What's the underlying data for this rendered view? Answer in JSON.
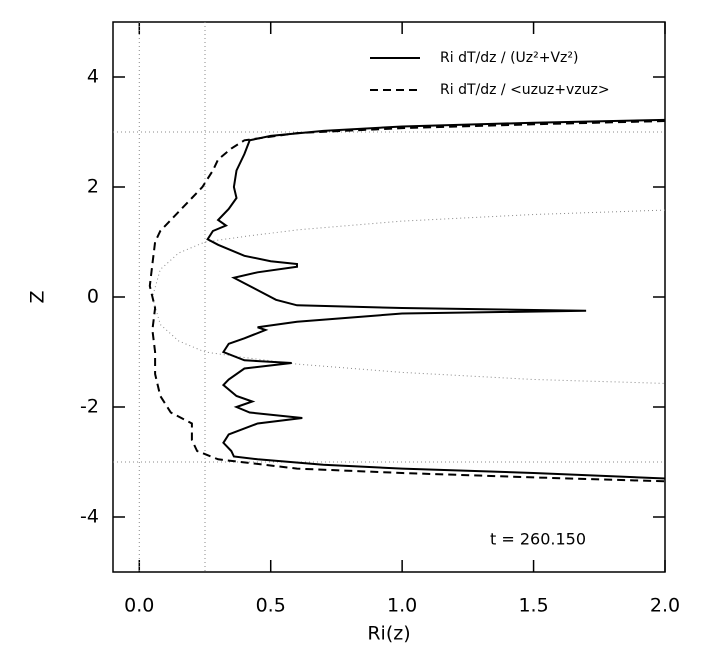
{
  "chart_data": {
    "type": "line",
    "xlabel": "Ri(z)",
    "ylabel": "Z",
    "annotation": "t = 260.150",
    "xlim": [
      -0.1,
      2.0
    ],
    "ylim": [
      -5,
      5
    ],
    "xticks": [
      {
        "value": 0,
        "label": "0.0"
      },
      {
        "value": 0.5,
        "label": "0.5"
      },
      {
        "value": 1,
        "label": "1.0"
      },
      {
        "value": 1.5,
        "label": "1.5"
      },
      {
        "value": 2,
        "label": "2.0"
      }
    ],
    "yticks": [
      -4,
      -2,
      0,
      2,
      4
    ],
    "vlines": [
      0,
      0.25
    ],
    "hlines": [
      3,
      -3
    ],
    "legend": "upper right",
    "series": [
      {
        "name": "Ri dT/dz / (Uz²+Vz²)",
        "color": "#000000",
        "dash": "solid",
        "x": [
          2.0,
          1.5,
          1.0,
          0.7,
          0.5,
          0.42,
          0.4,
          0.37,
          0.36,
          0.37,
          0.34,
          0.3,
          0.33,
          0.28,
          0.26,
          0.3,
          0.4,
          0.5,
          0.6,
          0.6,
          0.45,
          0.36,
          0.4,
          0.46,
          0.52,
          0.6,
          1.0,
          1.7,
          1.0,
          0.6,
          0.45,
          0.48,
          0.4,
          0.34,
          0.32,
          0.4,
          0.58,
          0.4,
          0.34,
          0.32,
          0.37,
          0.43,
          0.37,
          0.42,
          0.62,
          0.45,
          0.34,
          0.32,
          0.35,
          0.36,
          0.45,
          0.7,
          1.0,
          1.5,
          2.0
        ],
        "values": [
          3.22,
          3.17,
          3.1,
          3.02,
          2.93,
          2.85,
          2.6,
          2.3,
          2.0,
          1.8,
          1.6,
          1.4,
          1.3,
          1.2,
          1.05,
          0.95,
          0.75,
          0.65,
          0.6,
          0.55,
          0.45,
          0.35,
          0.25,
          0.1,
          -0.05,
          -0.15,
          -0.2,
          -0.25,
          -0.3,
          -0.45,
          -0.55,
          -0.6,
          -0.75,
          -0.85,
          -1.0,
          -1.15,
          -1.2,
          -1.3,
          -1.5,
          -1.6,
          -1.8,
          -1.9,
          -2.0,
          -2.1,
          -2.2,
          -2.3,
          -2.5,
          -2.65,
          -2.8,
          -2.9,
          -2.95,
          -3.05,
          -3.12,
          -3.2,
          -3.3
        ]
      },
      {
        "name": "Ri dT/dz / <uzuz+vzuz>",
        "color": "#000000",
        "dash": "dashed",
        "x": [
          2.0,
          1.5,
          1.0,
          0.6,
          0.4,
          0.35,
          0.3,
          0.28,
          0.24,
          0.2,
          0.16,
          0.12,
          0.08,
          0.06,
          0.05,
          0.04,
          0.06,
          0.05,
          0.06,
          0.06,
          0.08,
          0.12,
          0.2,
          0.2,
          0.22,
          0.3,
          0.6,
          1.0,
          1.5,
          2.0
        ],
        "values": [
          3.2,
          3.14,
          3.07,
          2.98,
          2.85,
          2.7,
          2.5,
          2.3,
          2.0,
          1.8,
          1.6,
          1.4,
          1.2,
          1.0,
          0.6,
          0.2,
          -0.2,
          -0.6,
          -1.0,
          -1.4,
          -1.8,
          -2.1,
          -2.3,
          -2.6,
          -2.8,
          -2.95,
          -3.12,
          -3.2,
          -3.28,
          -3.35
        ]
      }
    ],
    "reference_curve": {
      "color": "#888888",
      "x": [
        2.0,
        1.5,
        1.0,
        0.6,
        0.4,
        0.25,
        0.15,
        0.08,
        0.05,
        0.08,
        0.15,
        0.25,
        0.4,
        0.6,
        1.0,
        1.5,
        2.0
      ],
      "values": [
        1.58,
        1.5,
        1.38,
        1.22,
        1.1,
        1.0,
        0.8,
        0.5,
        0,
        -0.5,
        -0.8,
        -1.0,
        -1.1,
        -1.22,
        -1.37,
        -1.5,
        -1.57
      ]
    }
  }
}
